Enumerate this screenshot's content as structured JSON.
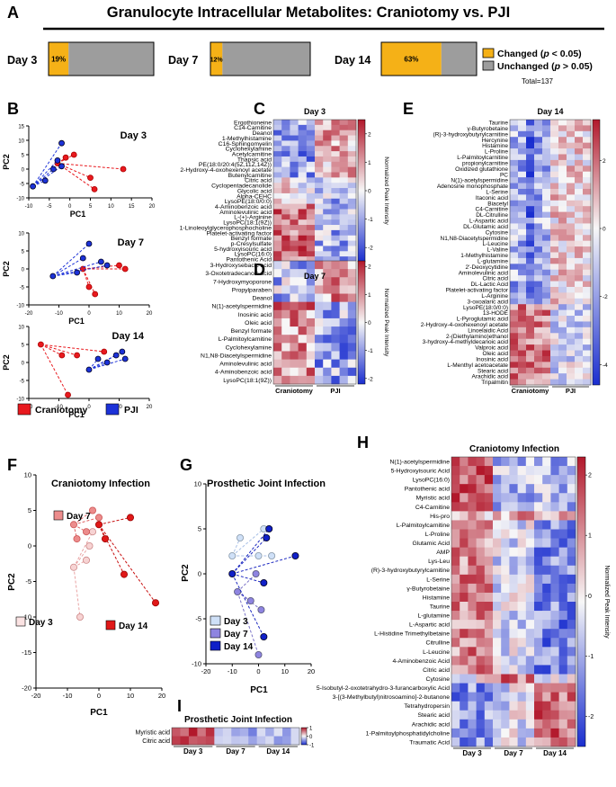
{
  "title": "Granulocyte Intracellular Metabolites: Craniotomy vs. PJI",
  "panel_letters": {
    "A": "A",
    "B": "B",
    "C": "C",
    "D": "D",
    "E": "E",
    "F": "F",
    "G": "G",
    "H": "H",
    "I": "I"
  },
  "colors": {
    "changed": "#f5b117",
    "unchanged": "#9d9d9d",
    "crani": "#e8191e",
    "pji": "#1c32d8",
    "hi": "#b2182b",
    "mid": "#f7f7f7",
    "lo": "#1a2ecf"
  },
  "panel_a": {
    "bars": [
      {
        "label": "Day 3",
        "changed_pct": 19,
        "text": "19%"
      },
      {
        "label": "Day 7",
        "changed_pct": 12,
        "text": "12%"
      },
      {
        "label": "Day 14",
        "changed_pct": 63,
        "text": "63%"
      }
    ],
    "legend": {
      "changed_pre": "Changed (",
      "changed_p": "p",
      "changed_post": " < 0.05)",
      "unchanged_pre": "Unchanged (",
      "unchanged_p": "p",
      "unchanged_post": " > 0.05)",
      "total": "Total=137"
    }
  },
  "chart_data": [
    {
      "id": "B",
      "type": "scatter",
      "xlabel": "PC1",
      "ylabel": "PC2",
      "plots": [
        {
          "title": "Day 3",
          "xlim": [
            -10,
            20
          ],
          "ylim": [
            -10,
            15
          ],
          "xticks": [
            -10,
            -5,
            0,
            5,
            10,
            15,
            20
          ],
          "yticks": [
            -10,
            -5,
            0,
            5,
            10,
            15
          ],
          "series": [
            {
              "name": "Craniotomy",
              "points": [
                [
                  -3,
                  2
                ],
                [
                  -1,
                  4
                ],
                [
                  1,
                  5
                ],
                [
                  5,
                  -3
                ],
                [
                  6,
                  -7
                ],
                [
                  13,
                  0
                ]
              ]
            },
            {
              "name": "PJI",
              "points": [
                [
                  -9,
                  -6
                ],
                [
                  -6,
                  -4
                ],
                [
                  -4,
                  0
                ],
                [
                  -3,
                  3
                ],
                [
                  -2,
                  1
                ],
                [
                  -2,
                  9
                ]
              ]
            }
          ]
        },
        {
          "title": "Day 7",
          "xlim": [
            -20,
            20
          ],
          "ylim": [
            -10,
            10
          ],
          "xticks": [
            -20,
            -10,
            0,
            10,
            20
          ],
          "yticks": [
            -10,
            -5,
            0,
            5,
            10
          ],
          "series": [
            {
              "name": "Craniotomy",
              "points": [
                [
                  -2,
                  0
                ],
                [
                  0,
                  -5
                ],
                [
                  2,
                  -7
                ],
                [
                  10,
                  1
                ],
                [
                  12,
                  0
                ]
              ]
            },
            {
              "name": "PJI",
              "points": [
                [
                  -12,
                  -2
                ],
                [
                  -4,
                  -1
                ],
                [
                  -2,
                  3
                ],
                [
                  0,
                  7
                ],
                [
                  4,
                  2
                ],
                [
                  6,
                  1
                ]
              ]
            }
          ]
        },
        {
          "title": "Day 14",
          "xlim": [
            -20,
            20
          ],
          "ylim": [
            -10,
            10
          ],
          "xticks": [
            -20,
            -10,
            0,
            10,
            20
          ],
          "yticks": [
            -10,
            -5,
            0,
            5,
            10
          ],
          "series": [
            {
              "name": "Craniotomy",
              "points": [
                [
                  -16,
                  5
                ],
                [
                  -9,
                  2
                ],
                [
                  -4,
                  2
                ],
                [
                  -7,
                  -9
                ],
                [
                  5,
                  3
                ]
              ]
            },
            {
              "name": "PJI",
              "points": [
                [
                  0,
                  -2
                ],
                [
                  3,
                  1
                ],
                [
                  6,
                  0
                ],
                [
                  9,
                  2
                ],
                [
                  11,
                  3
                ],
                [
                  12,
                  1
                ]
              ]
            }
          ]
        }
      ],
      "legend": [
        "Craniotomy",
        "PJI"
      ]
    },
    {
      "id": "C",
      "type": "heatmap",
      "title": "Day 3",
      "groups": [
        "Craniotomy",
        "PJI"
      ],
      "cbar_label": "Normalized Peak Intensity",
      "cbar_range": [
        -2.5,
        2.5
      ],
      "cbar_ticks": [
        2,
        1,
        0,
        -1,
        -2
      ],
      "rows": [
        "Ergothioneine",
        "C14-Carnitine",
        "Deanol",
        "1-Methylhistamine",
        "C16-Sphingomyelin",
        "Cyclohexylamine",
        "Acetylcarnitine",
        "Thapsic acid",
        "PE(18:0/20:4(5Z,11Z,14Z))",
        "2-Hydroxy-4-oxohexenoyl acetate",
        "Butenylcarnitine",
        "Citric acid",
        "Cyclopentadecanolide",
        "Glycolic acid",
        "Alpha-CEHC",
        "LysoPE(18:0/0:0)",
        "4-Aminobenzoic acid",
        "Aminolevulinic acid",
        "L-(+)-Arginine",
        "LysoPC(18:1(9Z))",
        "1-Linoleoylglycerophosphocholine",
        "Platelet-activating factor",
        "Benzyl formate",
        "p-Cresylsulfate",
        "5-hydroxyisouric acid",
        "LysoPC(16:0)",
        "Pantothenic Acid"
      ]
    },
    {
      "id": "D",
      "type": "heatmap",
      "title": "Day 7",
      "groups": [
        "Craniotomy",
        "PJI"
      ],
      "cbar_label": "Normalized Peak Intensity",
      "cbar_range": [
        -2.2,
        2.2
      ],
      "cbar_ticks": [
        2,
        1,
        0,
        -1,
        -2
      ],
      "rows": [
        "3-Hydroxysebacic acid",
        "3-Oxotetradecanoic acid",
        "7-Hydroxymyoporone",
        "Propylparaben",
        "Deanol",
        "N(1)-acetylspermidine",
        "Inosinic acid",
        "Oleic acid",
        "Benzyl formate",
        "L-Palmitoylcarnitine",
        "Cyclohexylamine",
        "N1,N8-Diacetylspermidine",
        "Aminolevulinic acid",
        "4-Aminobenzoic acid",
        "LysoPC(18:1(9Z))"
      ]
    },
    {
      "id": "E",
      "type": "heatmap",
      "title": "Day 14",
      "groups": [
        "Craniotomy",
        "PJI"
      ],
      "cbar_label": "Normalized Peak Intensity",
      "cbar_range": [
        -4.6,
        3.2
      ],
      "cbar_ticks": [
        2,
        0,
        -2,
        -4
      ],
      "rows": [
        "Taurine",
        "γ-Butyrobetaine",
        "(R)-3-hydroxybutyrylcarnitine",
        "Hercynine",
        "Histamine",
        "L-Proline",
        "L-Palmitoylcarnitine",
        "propionylcarnitine",
        "Oxidized glutathione",
        "PC",
        "N(1)-acetylspermidine",
        "Adenosine monophosphate",
        "L-Serine",
        "Itaconic acid",
        "Biacetyl",
        "C4-Carnitine",
        "DL-Citrulline",
        "L-Aspartic acid",
        "DL-Glutamic acid",
        "Cytosine",
        "N1,N8-Diacetylspermidine",
        "L-Leucine",
        "L-Valine",
        "1-Methylhistamine",
        "L-glutamine",
        "2'-Deoxycytidine",
        "Aminolevulinic acid",
        "Citric acid",
        "DL-Lactic Acid",
        "Platelet-activating factor",
        "L-Arginine",
        "3-oxoalaric acid",
        "LysoPE(18:0/0:0)",
        "13-HODE",
        "L-Pyroglutamic acid",
        "2-Hydroxy-4-oxohexenoyl acetate",
        "Linoelaidic Acid",
        "2-(Diethylamino)ethanol",
        "3-hydroxy-4-methyldecanoic acid",
        "Valproic acid",
        "Oleic acid",
        "Inosinic acid",
        "L-Menthyl acetoacetate",
        "Stearic acid",
        "Arachidic acid",
        "Tripalmitin"
      ]
    },
    {
      "id": "F",
      "type": "scatter",
      "title": "Craniotomy Infection",
      "xlabel": "PC1",
      "ylabel": "PC2",
      "xlim": [
        -20,
        20
      ],
      "ylim": [
        -20,
        10
      ],
      "xticks": [
        -20,
        -10,
        0,
        10,
        20
      ],
      "yticks": [
        -20,
        -15,
        -10,
        -5,
        0,
        5,
        10
      ],
      "series": [
        {
          "name": "Day 3",
          "points": [
            [
              -8,
              -3
            ],
            [
              -6,
              -10
            ],
            [
              -4,
              -2
            ],
            [
              -3,
              0
            ],
            [
              -2,
              2
            ]
          ]
        },
        {
          "name": "Day 7",
          "points": [
            [
              -8,
              3
            ],
            [
              -7,
              1
            ],
            [
              -4,
              2
            ],
            [
              -2,
              5
            ],
            [
              0,
              4
            ]
          ]
        },
        {
          "name": "Day 14",
          "points": [
            [
              0,
              3
            ],
            [
              2,
              1
            ],
            [
              8,
              -4
            ],
            [
              10,
              4
            ],
            [
              18,
              -8
            ]
          ]
        }
      ],
      "labels": [
        "Day 7",
        "Day 3",
        "Day 14"
      ]
    },
    {
      "id": "G",
      "type": "scatter",
      "title": "Prosthetic Joint Infection",
      "xlabel": "PC1",
      "ylabel": "PC2",
      "xlim": [
        -20,
        20
      ],
      "ylim": [
        -10,
        10
      ],
      "xticks": [
        -20,
        -10,
        0,
        10,
        20
      ],
      "yticks": [
        -10,
        -5,
        0,
        5,
        10
      ],
      "series": [
        {
          "name": "Day 3",
          "points": [
            [
              -10,
              2
            ],
            [
              -7,
              4
            ],
            [
              2,
              5
            ],
            [
              5,
              2
            ],
            [
              0,
              2
            ]
          ]
        },
        {
          "name": "Day 7",
          "points": [
            [
              -8,
              -2
            ],
            [
              -3,
              -3
            ],
            [
              -1,
              0
            ],
            [
              1,
              -4
            ],
            [
              0,
              -9
            ]
          ]
        },
        {
          "name": "Day 14",
          "points": [
            [
              -10,
              0
            ],
            [
              2,
              -1
            ],
            [
              4,
              5
            ],
            [
              3,
              4
            ],
            [
              14,
              2
            ],
            [
              2,
              -7
            ]
          ]
        }
      ],
      "legend": [
        "Day 3",
        "Day 7",
        "Day 14"
      ]
    },
    {
      "id": "H",
      "type": "heatmap",
      "title": "Craniotomy Infection",
      "groups": [
        "Day 3",
        "Day 7",
        "Day 14"
      ],
      "cbar_label": "Normalized Peak Intensity",
      "cbar_range": [
        -2.5,
        2.3
      ],
      "cbar_ticks": [
        2,
        1,
        0,
        -1,
        -2
      ],
      "rows": [
        "N(1)-acetylspermidine",
        "5-Hydroxyisouric Acid",
        "LysoPC(16:0)",
        "Pantothenic acid",
        "Myristic acid",
        "C4-Carnitine",
        "His-pro",
        "L-Palmitoylcarnitine",
        "L-Proline",
        "Glutamic Acid",
        "AMP",
        "Lys-Leu",
        "(R)-3-hydroxybutyrylcarnitine",
        "L-Serine",
        "γ-Butyrobetaine",
        "Histamine",
        "Taurine",
        "L-glutamine",
        "L-Aspartic acid",
        "L-Histidine Trimethylbetaine",
        "Citrulline",
        "L-Leucine",
        "4-Aminobenzoic Acid",
        "Citric acid",
        "Cytosine",
        "5-Isobutyl-2-oxotetrahydro-3-furancarboxylic Acid",
        "3-[(3-Methylbutyl)nitrosoamino]-2-butanone",
        "Tetrahydropersin",
        "Stearic acid",
        "Arachidic acid",
        "1-Palmitoylphosphatidylcholine",
        "Traumatic Acid"
      ]
    },
    {
      "id": "I",
      "type": "heatmap",
      "title": "Prosthetic Joint Infection",
      "groups": [
        "Day 3",
        "Day 7",
        "Day 14"
      ],
      "cbar_label": "",
      "cbar_range": [
        -1,
        1
      ],
      "cbar_ticks": [
        1,
        0,
        -1
      ],
      "rows": [
        "Myristic acid",
        "Citric acid"
      ]
    }
  ]
}
